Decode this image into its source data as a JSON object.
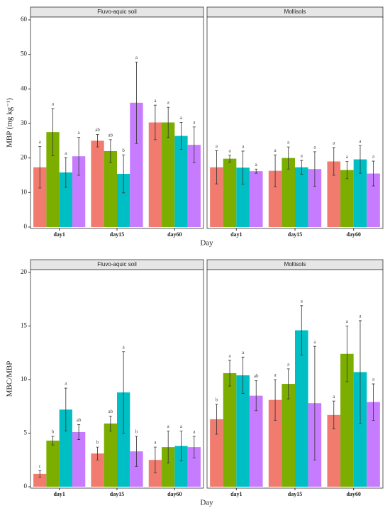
{
  "chart_data": [
    {
      "type": "bar",
      "ylabel": "MBP (mg kg⁻¹)",
      "xlabel": "Day",
      "categories": [
        "day1",
        "day15",
        "day60"
      ],
      "colors": [
        "#f07b6e",
        "#7cae00",
        "#00bfc4",
        "#c77cff"
      ],
      "ylim": [
        0,
        60
      ],
      "yticks": [
        0,
        10,
        20,
        30,
        40,
        50,
        60
      ],
      "grid": false,
      "facets": [
        {
          "title": "Fluvo-aquic soil",
          "series": [
            {
              "values": [
                17.3,
                25,
                30.3
              ],
              "errors": [
                6,
                1.8,
                5
              ],
              "labels": [
                "a",
                "ab",
                "a"
              ]
            },
            {
              "values": [
                27.5,
                22,
                30.3
              ],
              "errors": [
                6.8,
                3.3,
                4.4
              ],
              "labels": [
                "a",
                "ab",
                "a"
              ]
            },
            {
              "values": [
                15.8,
                15.4,
                26.4
              ],
              "errors": [
                4.3,
                5.5,
                3.9
              ],
              "labels": [
                "a",
                "b",
                "a"
              ]
            },
            {
              "values": [
                20.5,
                36,
                23.8
              ],
              "errors": [
                5.5,
                11.8,
                5.2
              ],
              "labels": [
                "a",
                "a",
                "a"
              ]
            }
          ]
        },
        {
          "title": "Mollisols",
          "series": [
            {
              "values": [
                17.3,
                16.3,
                19
              ],
              "errors": [
                4.8,
                4.6,
                4
              ],
              "labels": [
                "a",
                "a",
                "a"
              ]
            },
            {
              "values": [
                19.8,
                20,
                16.5
              ],
              "errors": [
                1,
                3.2,
                2.5
              ],
              "labels": [
                "a",
                "a",
                "a"
              ]
            },
            {
              "values": [
                17.2,
                17.3,
                19.6
              ],
              "errors": [
                4.8,
                2,
                4
              ],
              "labels": [
                "a",
                "a",
                "a"
              ]
            },
            {
              "values": [
                16.2,
                16.8,
                15.5
              ],
              "errors": [
                0.6,
                5,
                3.6
              ],
              "labels": [
                "a",
                "a",
                "a"
              ]
            }
          ]
        }
      ]
    },
    {
      "type": "bar",
      "ylabel": "MBC/MBP",
      "xlabel": "Day",
      "categories": [
        "day1",
        "day15",
        "day60"
      ],
      "colors": [
        "#f07b6e",
        "#7cae00",
        "#00bfc4",
        "#c77cff"
      ],
      "ylim": [
        0,
        20
      ],
      "yticks": [
        0,
        5,
        10,
        15,
        20
      ],
      "grid": false,
      "facets": [
        {
          "title": "Fluvo-aquic soil",
          "series": [
            {
              "values": [
                1.2,
                3.1,
                2.5
              ],
              "errors": [
                0.3,
                0.6,
                1.2
              ],
              "labels": [
                "c",
                "b",
                "a"
              ]
            },
            {
              "values": [
                4.3,
                5.9,
                3.7
              ],
              "errors": [
                0.4,
                0.7,
                1.5
              ],
              "labels": [
                "b",
                "ab",
                "a"
              ]
            },
            {
              "values": [
                7.2,
                8.8,
                3.8
              ],
              "errors": [
                2,
                3.8,
                1.4
              ],
              "labels": [
                "a",
                "a",
                "a"
              ]
            },
            {
              "values": [
                5.1,
                3.3,
                3.7
              ],
              "errors": [
                0.7,
                1.4,
                1
              ],
              "labels": [
                "ab",
                "b",
                "a"
              ]
            }
          ]
        },
        {
          "title": "Mollisols",
          "series": [
            {
              "values": [
                6.3,
                8.1,
                6.7
              ],
              "errors": [
                1.4,
                1.9,
                1.3
              ],
              "labels": [
                "b",
                "a",
                "a"
              ]
            },
            {
              "values": [
                10.6,
                9.6,
                12.4
              ],
              "errors": [
                1.2,
                1.4,
                2.6
              ],
              "labels": [
                "a",
                "a",
                "a"
              ]
            },
            {
              "values": [
                10.4,
                14.6,
                10.7
              ],
              "errors": [
                1.7,
                2.3,
                4.8
              ],
              "labels": [
                "a",
                "a",
                "a"
              ]
            },
            {
              "values": [
                8.5,
                7.8,
                7.9
              ],
              "errors": [
                1.4,
                5.3,
                1.7
              ],
              "labels": [
                "ab",
                "a",
                "a"
              ]
            }
          ]
        }
      ]
    }
  ]
}
